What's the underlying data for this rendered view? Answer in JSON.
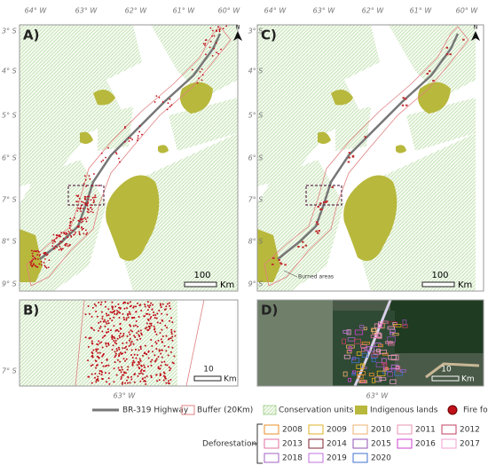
{
  "panels": [
    {
      "label": "A)"
    },
    {
      "label": "B)"
    },
    {
      "label": "C)"
    },
    {
      "label": "D)"
    }
  ],
  "top_axis": [
    "64° W",
    "63° W",
    "62° W",
    "61° W",
    "60° W"
  ],
  "left_axis": [
    "3° S",
    "4° S",
    "5° S",
    "6° S",
    "7° S",
    "8° S",
    "9° S"
  ],
  "north": "N",
  "scale_main": {
    "value": "100",
    "unit": "Km"
  },
  "burned_areas": "Burned areas",
  "inset_lat": "7° S",
  "inset_lon": "63° W",
  "scale_inset": {
    "value": "10",
    "unit": "Km"
  },
  "legend": {
    "items": [
      {
        "label": "BR-319 Highway"
      },
      {
        "label": "Buffer (20Km)"
      },
      {
        "label": "Conservation units"
      },
      {
        "label": "Indigenous lands"
      },
      {
        "label": "Fire foci"
      }
    ],
    "deforestation": {
      "title": "Deforestation",
      "years": [
        {
          "label": "2008",
          "color": "#e8902a"
        },
        {
          "label": "2009",
          "color": "#e0b020"
        },
        {
          "label": "2010",
          "color": "#f0b070"
        },
        {
          "label": "2011",
          "color": "#e890b0"
        },
        {
          "label": "2012",
          "color": "#c04060"
        },
        {
          "label": "2013",
          "color": "#e070a0"
        },
        {
          "label": "2014",
          "color": "#802030"
        },
        {
          "label": "2015",
          "color": "#9050b0"
        },
        {
          "label": "2016",
          "color": "#d040d0"
        },
        {
          "label": "2017",
          "color": "#f0a0d0"
        },
        {
          "label": "2018",
          "color": "#a060c0"
        },
        {
          "label": "2019",
          "color": "#c070e0"
        },
        {
          "label": "2020",
          "color": "#4070d0"
        }
      ]
    }
  }
}
